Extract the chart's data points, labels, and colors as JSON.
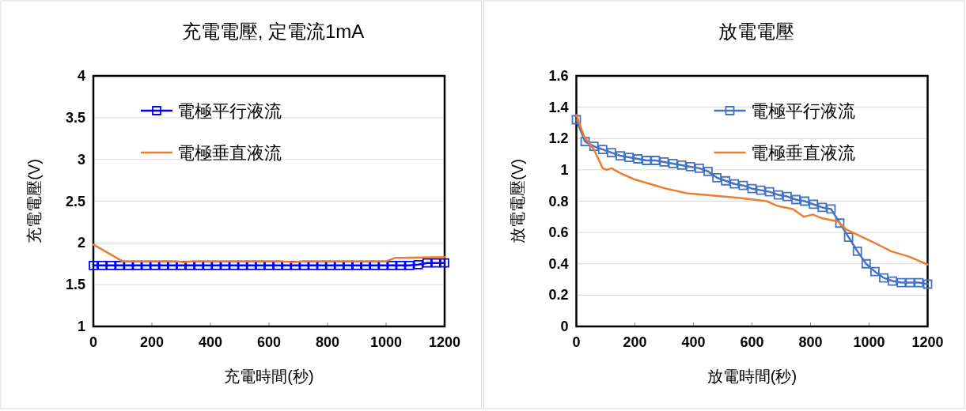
{
  "chart_data": [
    {
      "type": "line",
      "title": "充電電壓, 定電流1mA",
      "xlabel": "充電時間(秒)",
      "ylabel": "充電電壓(V)",
      "xlim": [
        0,
        1200
      ],
      "xticks": [
        0,
        200,
        400,
        600,
        800,
        1000,
        1200
      ],
      "ylim": [
        1,
        4
      ],
      "yticks": [
        1,
        1.5,
        2,
        2.5,
        3,
        3.5,
        4
      ],
      "grid": "y",
      "legend": "top left",
      "series": [
        {
          "name": "電極平行液流",
          "color": "#0000ff",
          "marker": "square",
          "x": [
            0,
            30,
            60,
            90,
            120,
            150,
            180,
            210,
            240,
            270,
            300,
            330,
            360,
            390,
            420,
            450,
            480,
            510,
            540,
            570,
            600,
            630,
            660,
            690,
            720,
            750,
            780,
            810,
            840,
            870,
            900,
            930,
            960,
            990,
            1020,
            1050,
            1080,
            1110,
            1140,
            1170,
            1200
          ],
          "values": [
            1.73,
            1.73,
            1.73,
            1.73,
            1.73,
            1.73,
            1.73,
            1.73,
            1.73,
            1.73,
            1.73,
            1.73,
            1.73,
            1.73,
            1.73,
            1.73,
            1.73,
            1.73,
            1.73,
            1.73,
            1.73,
            1.73,
            1.73,
            1.73,
            1.73,
            1.73,
            1.73,
            1.73,
            1.73,
            1.73,
            1.73,
            1.73,
            1.73,
            1.73,
            1.73,
            1.73,
            1.73,
            1.74,
            1.76,
            1.76,
            1.76
          ]
        },
        {
          "name": "電極垂直液流",
          "color": "#ed7d31",
          "x": [
            0,
            100,
            280,
            310,
            340,
            640,
            680,
            720,
            1000,
            1030,
            1200
          ],
          "values": [
            1.98,
            1.78,
            1.78,
            1.77,
            1.78,
            1.78,
            1.77,
            1.78,
            1.78,
            1.82,
            1.83
          ]
        }
      ]
    },
    {
      "type": "line",
      "title": "放電電壓",
      "xlabel": "放電時間(秒)",
      "ylabel": "放電電壓(V)",
      "xlim": [
        0,
        1200
      ],
      "xticks": [
        0,
        200,
        400,
        600,
        800,
        1000,
        1200
      ],
      "ylim": [
        0,
        1.6
      ],
      "yticks": [
        0,
        0.2,
        0.4,
        0.6,
        0.8,
        1,
        1.2,
        1.4,
        1.6
      ],
      "grid": "y",
      "legend": "top right",
      "series": [
        {
          "name": "電極平行液流",
          "color": "#4472c4",
          "marker": "square",
          "x": [
            0,
            30,
            60,
            90,
            120,
            150,
            180,
            210,
            240,
            270,
            300,
            330,
            360,
            390,
            420,
            450,
            480,
            510,
            540,
            570,
            600,
            630,
            660,
            690,
            720,
            750,
            780,
            810,
            840,
            870,
            900,
            930,
            960,
            990,
            1020,
            1050,
            1080,
            1110,
            1140,
            1170,
            1200
          ],
          "values": [
            1.32,
            1.18,
            1.15,
            1.13,
            1.11,
            1.09,
            1.08,
            1.07,
            1.06,
            1.06,
            1.05,
            1.04,
            1.03,
            1.02,
            1.01,
            0.99,
            0.95,
            0.93,
            0.91,
            0.9,
            0.88,
            0.87,
            0.86,
            0.84,
            0.83,
            0.81,
            0.8,
            0.78,
            0.76,
            0.75,
            0.66,
            0.57,
            0.48,
            0.4,
            0.35,
            0.31,
            0.29,
            0.28,
            0.28,
            0.28,
            0.27
          ]
        },
        {
          "name": "電極垂直液流",
          "color": "#ed7d31",
          "x": [
            0,
            27,
            60,
            90,
            104,
            120,
            149,
            197,
            270,
            306,
            378,
            469,
            559,
            650,
            686,
            740,
            777,
            808,
            840,
            894,
            921,
            1012,
            1075,
            1138,
            1200
          ],
          "values": [
            1.35,
            1.21,
            1.13,
            1.01,
            1.0,
            1.01,
            0.98,
            0.94,
            0.9,
            0.88,
            0.85,
            0.835,
            0.82,
            0.8,
            0.77,
            0.75,
            0.7,
            0.715,
            0.69,
            0.67,
            0.62,
            0.54,
            0.48,
            0.445,
            0.395
          ]
        }
      ]
    }
  ]
}
